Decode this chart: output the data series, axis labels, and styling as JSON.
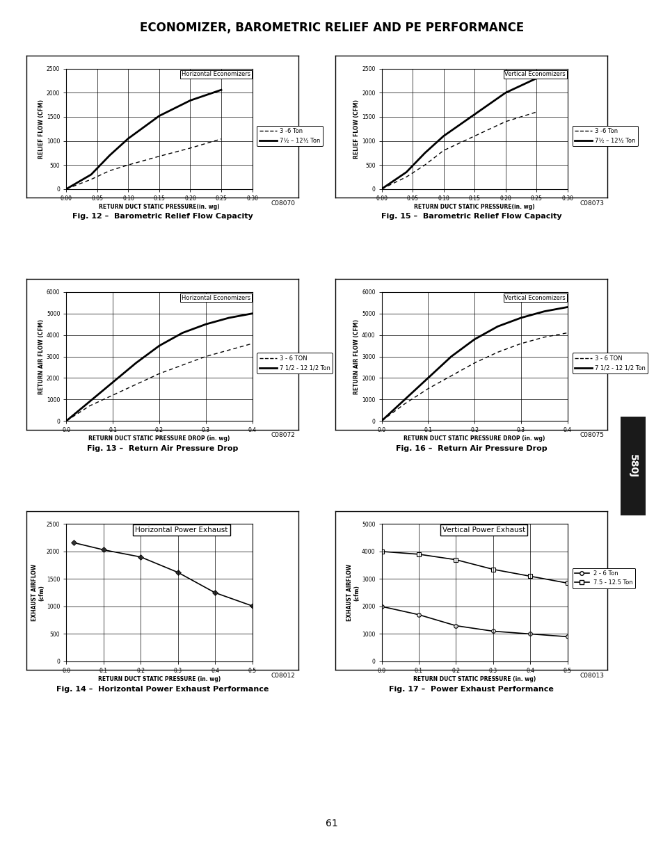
{
  "title": "ECONOMIZER, BAROMETRIC RELIEF AND PE PERFORMANCE",
  "fig12": {
    "title": "Fig. 12 –  Barometric Relief Flow Capacity",
    "code": "C08070",
    "box_label": "Horizontal Economizers",
    "xlabel": "RETURN DUCT STATIC PRESSURE(in. wg)",
    "ylabel": "RELIEF FLOW (CFM)",
    "xlim": [
      0,
      0.3
    ],
    "ylim": [
      0,
      2500
    ],
    "xticks": [
      0,
      0.05,
      0.1,
      0.15,
      0.2,
      0.25,
      0.3
    ],
    "yticks": [
      0,
      500,
      1000,
      1500,
      2000,
      2500
    ],
    "line1_x": [
      0,
      0.04,
      0.07,
      0.1,
      0.15,
      0.2,
      0.25
    ],
    "line1_y": [
      0,
      200,
      380,
      500,
      680,
      850,
      1040
    ],
    "line2_x": [
      0,
      0.04,
      0.07,
      0.1,
      0.15,
      0.2,
      0.25
    ],
    "line2_y": [
      0,
      300,
      700,
      1050,
      1520,
      1840,
      2060
    ],
    "legend1": "3 -6 Ton",
    "legend2": "7½ – 12½ Ton"
  },
  "fig13": {
    "title": "Fig. 13 –  Return Air Pressure Drop",
    "code": "C08072",
    "box_label": "Horizontal Economizers",
    "xlabel": "RETURN DUCT STATIC PRESSURE DROP (in. wg)",
    "ylabel": "RETURN AIR FLOW (CFM)",
    "xlim": [
      0,
      0.4
    ],
    "ylim": [
      0,
      6000
    ],
    "xticks": [
      0,
      0.1,
      0.2,
      0.3,
      0.4
    ],
    "yticks": [
      0,
      1000,
      2000,
      3000,
      4000,
      5000,
      6000
    ],
    "line1_x": [
      0,
      0.05,
      0.1,
      0.15,
      0.2,
      0.25,
      0.3,
      0.35,
      0.4
    ],
    "line1_y": [
      0,
      700,
      1200,
      1700,
      2200,
      2600,
      3000,
      3300,
      3600
    ],
    "line2_x": [
      0,
      0.05,
      0.1,
      0.15,
      0.2,
      0.25,
      0.3,
      0.35,
      0.4
    ],
    "line2_y": [
      0,
      900,
      1800,
      2700,
      3500,
      4100,
      4500,
      4800,
      5000
    ],
    "legend1": "3 - 6 TON",
    "legend2": "7 1/2 - 12 1/2 Ton"
  },
  "fig14": {
    "title": "Fig. 14 –  Horizontal Power Exhaust Performance",
    "code": "C08012",
    "box_label": "Horizontal Power Exhaust",
    "xlabel": "RETURN DUCT STATIC PRESSURE (in. wg)",
    "ylabel": "EXHAUST AIRFLOW\n(cfm)",
    "xlim": [
      0,
      0.5
    ],
    "ylim": [
      0,
      2500
    ],
    "xticks": [
      0,
      0.1,
      0.2,
      0.3,
      0.4,
      0.5
    ],
    "yticks": [
      0,
      500,
      1000,
      1500,
      2000,
      2500
    ],
    "line1_x": [
      0.02,
      0.1,
      0.2,
      0.3,
      0.4,
      0.5
    ],
    "line1_y": [
      2160,
      2030,
      1900,
      1620,
      1250,
      1010
    ]
  },
  "fig15": {
    "title": "Fig. 15 –  Barometric Relief Flow Capacity",
    "code": "C08073",
    "box_label": "Vertical Economizers",
    "xlabel": "RETURN DUCT STATIC PRESSURE(in. wg)",
    "ylabel": "RELIEF FLOW (CFM)",
    "xlim": [
      0,
      0.3
    ],
    "ylim": [
      0,
      2500
    ],
    "xticks": [
      0,
      0.05,
      0.1,
      0.15,
      0.2,
      0.25,
      0.3
    ],
    "yticks": [
      0,
      500,
      1000,
      1500,
      2000,
      2500
    ],
    "line1_x": [
      0,
      0.04,
      0.07,
      0.1,
      0.15,
      0.2,
      0.25
    ],
    "line1_y": [
      0,
      250,
      500,
      800,
      1100,
      1400,
      1600
    ],
    "line2_x": [
      0,
      0.04,
      0.07,
      0.1,
      0.15,
      0.2,
      0.25
    ],
    "line2_y": [
      0,
      350,
      750,
      1100,
      1550,
      2000,
      2300
    ],
    "legend1": "3 -6 Ton",
    "legend2": "7½ – 12½ Ton"
  },
  "fig16": {
    "title": "Fig. 16 –  Return Air Pressure Drop",
    "code": "C08075",
    "box_label": "Vertical Economizers",
    "xlabel": "RETURN DUCT STATIC PRESSURE DROP (in. wg)",
    "ylabel": "RETURN AIR FLOW (CFM)",
    "xlim": [
      0,
      0.4
    ],
    "ylim": [
      0,
      6000
    ],
    "xticks": [
      0,
      0.1,
      0.2,
      0.3,
      0.4
    ],
    "yticks": [
      0,
      1000,
      2000,
      3000,
      4000,
      5000,
      6000
    ],
    "line1_x": [
      0,
      0.05,
      0.1,
      0.15,
      0.2,
      0.25,
      0.3,
      0.35,
      0.4
    ],
    "line1_y": [
      0,
      800,
      1500,
      2100,
      2700,
      3200,
      3600,
      3900,
      4100
    ],
    "line2_x": [
      0,
      0.05,
      0.1,
      0.15,
      0.2,
      0.25,
      0.3,
      0.35,
      0.4
    ],
    "line2_y": [
      0,
      1000,
      2000,
      3000,
      3800,
      4400,
      4800,
      5100,
      5300
    ],
    "legend1": "3 - 6 TON",
    "legend2": "7 1/2 - 12 1/2 Ton"
  },
  "fig17": {
    "title": "Fig. 17 –  Power Exhaust Performance",
    "code": "C08013",
    "box_label": "Vertical Power Exhaust",
    "xlabel": "RETURN DUCT STATIC PRESSURE (in. wg)",
    "ylabel": "EXHAUST AIRFLOW\n(cfm)",
    "xlim": [
      0,
      0.5
    ],
    "ylim": [
      0,
      5000
    ],
    "xticks": [
      0,
      0.1,
      0.2,
      0.3,
      0.4,
      0.5
    ],
    "yticks": [
      0,
      1000,
      2000,
      3000,
      4000,
      5000
    ],
    "line1_x": [
      0,
      0.1,
      0.2,
      0.3,
      0.4,
      0.5
    ],
    "line1_y": [
      2000,
      1700,
      1300,
      1100,
      1000,
      900
    ],
    "line2_x": [
      0,
      0.1,
      0.2,
      0.3,
      0.4,
      0.5
    ],
    "line2_y": [
      4000,
      3900,
      3700,
      3350,
      3100,
      2850
    ],
    "legend1": "2 - 6 Ton",
    "legend2": "7.5 - 12.5 Ton"
  }
}
